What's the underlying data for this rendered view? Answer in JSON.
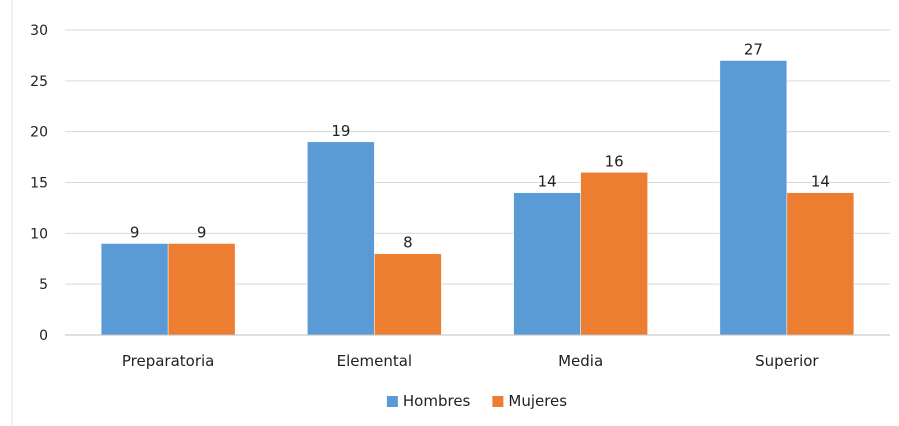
{
  "chart_data": {
    "type": "bar",
    "categories": [
      "Preparatoria",
      "Elemental",
      "Media",
      "Superior"
    ],
    "series": [
      {
        "name": "Hombres",
        "values": [
          9,
          19,
          14,
          27
        ],
        "color": "#5b9bd5"
      },
      {
        "name": "Mujeres",
        "values": [
          9,
          8,
          16,
          14
        ],
        "color": "#ed7d31"
      }
    ],
    "ylim": [
      0,
      30
    ],
    "yticks": [
      0,
      5,
      10,
      15,
      20,
      25,
      30
    ],
    "grid": true,
    "legend_position": "bottom",
    "data_labels": true,
    "title": "",
    "xlabel": "",
    "ylabel": ""
  }
}
